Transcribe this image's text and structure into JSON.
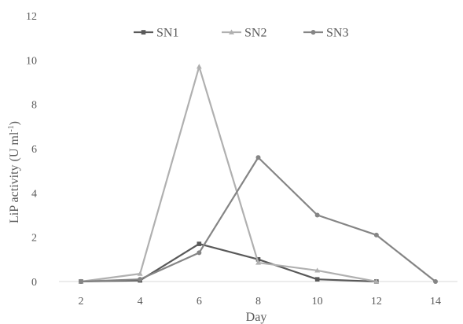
{
  "chart_data": {
    "type": "line",
    "title": "",
    "xlabel": "Day",
    "ylabel": {
      "main": "LiP activity (U ml",
      "sup": "-1",
      "close": ")"
    },
    "x": [
      2,
      4,
      6,
      8,
      10,
      12,
      14
    ],
    "x_tick_labels": [
      "2",
      "4",
      "6",
      "8",
      "10",
      "12",
      "14"
    ],
    "ylim": [
      0,
      12
    ],
    "y_ticks": [
      0,
      2,
      4,
      6,
      8,
      10,
      12
    ],
    "y_tick_labels": [
      "0",
      "2",
      "4",
      "6",
      "8",
      "10",
      "12"
    ],
    "grid": false,
    "legend_position": "top",
    "series": [
      {
        "name": "SN1",
        "color": "#595959",
        "marker": "square",
        "points": [
          [
            2,
            0
          ],
          [
            4,
            0.05
          ],
          [
            6,
            1.7
          ],
          [
            8,
            1.0
          ],
          [
            10,
            0.1
          ],
          [
            12,
            0.0
          ]
        ]
      },
      {
        "name": "SN2",
        "color": "#b0b0b0",
        "marker": "triangle",
        "points": [
          [
            2,
            0
          ],
          [
            4,
            0.35
          ],
          [
            6,
            9.7
          ],
          [
            8,
            0.85
          ],
          [
            10,
            0.5
          ],
          [
            12,
            0.0
          ]
        ]
      },
      {
        "name": "SN3",
        "color": "#858585",
        "marker": "circle",
        "points": [
          [
            2,
            0
          ],
          [
            4,
            0.1
          ],
          [
            6,
            1.3
          ],
          [
            8,
            5.6
          ],
          [
            10,
            3.0
          ],
          [
            12,
            2.1
          ],
          [
            14,
            0.0
          ]
        ]
      }
    ]
  }
}
